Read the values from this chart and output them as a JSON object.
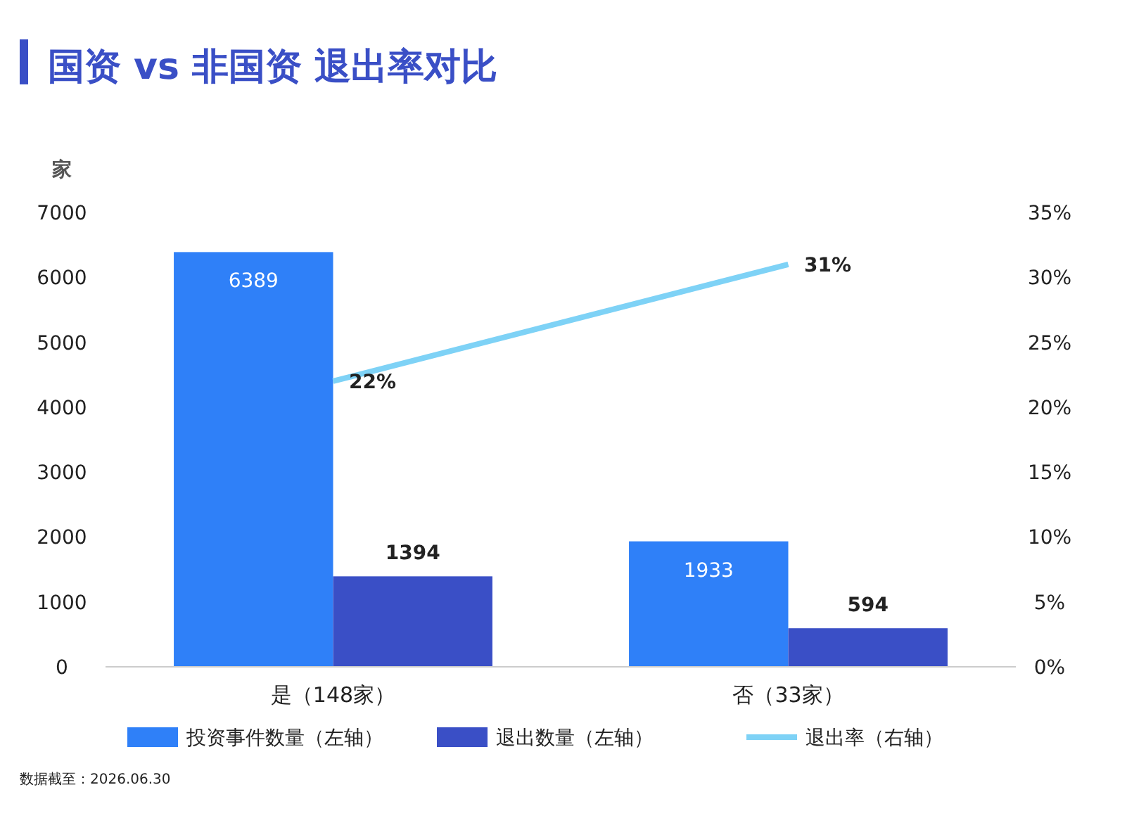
{
  "chart_data": {
    "type": "bar",
    "title": "国资 vs 非国资 退出率对比",
    "ylabel": "家",
    "categories": [
      "是（148家）",
      "否（33家）"
    ],
    "series": [
      {
        "name": "投资事件数量（左轴）",
        "color": "#2f80f8",
        "values": [
          6389,
          1933
        ],
        "value_labels": [
          "6389",
          "1933"
        ]
      },
      {
        "name": "退出数量（左轴）",
        "color": "#3a4fc6",
        "values": [
          1394,
          594
        ],
        "value_labels": [
          "1394",
          "594"
        ]
      },
      {
        "name": "退出率（右轴）",
        "type": "line",
        "axis": "y2",
        "color": "#7ed2f6",
        "values": [
          22,
          31
        ],
        "value_labels": [
          "22%",
          "31%"
        ]
      }
    ],
    "ylim": [
      0,
      7000
    ],
    "yticks": [
      0,
      1000,
      2000,
      3000,
      4000,
      5000,
      6000,
      7000
    ],
    "y2lim": [
      0,
      35
    ],
    "y2ticks": [
      {
        "value": 0,
        "label": "0%"
      },
      {
        "value": 5,
        "label": "5%"
      },
      {
        "value": 10,
        "label": "10%"
      },
      {
        "value": 15,
        "label": "15%"
      },
      {
        "value": 20,
        "label": "20%"
      },
      {
        "value": 25,
        "label": "25%"
      },
      {
        "value": 30,
        "label": "30%"
      },
      {
        "value": 35,
        "label": "35%"
      }
    ],
    "grid": false,
    "legend": "bottom",
    "annotations": [
      "数据截至：2026.06.30"
    ]
  }
}
